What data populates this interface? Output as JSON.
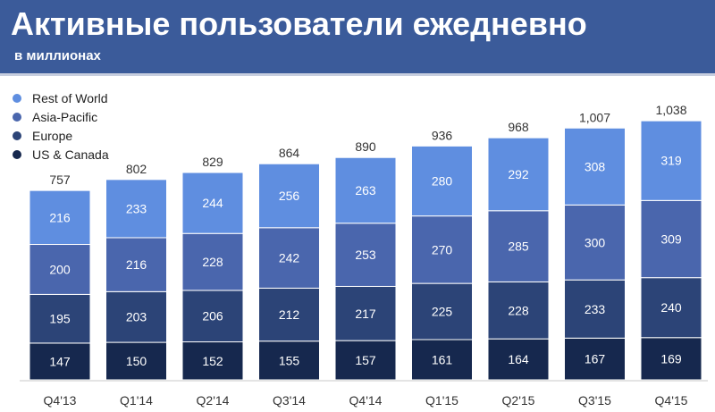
{
  "header": {
    "title": "Активные пользователи ежедневно",
    "subtitle": "в миллионах"
  },
  "colors": {
    "header_bg": "#3b5b9a",
    "rest_of_world": "#5f8ee0",
    "asia_pacific": "#4a66ad",
    "europe": "#2c4477",
    "us_canada": "#16284e"
  },
  "chart_data": {
    "type": "bar",
    "stacked": true,
    "title": "Активные пользователи ежедневно",
    "subtitle": "в миллионах",
    "xlabel": "",
    "ylabel": "",
    "legend_position": "top-left",
    "categories": [
      "Q4'13",
      "Q1'14",
      "Q2'14",
      "Q3'14",
      "Q4'14",
      "Q1'15",
      "Q2'15",
      "Q3'15",
      "Q4'15"
    ],
    "series": [
      {
        "name": "US & Canada",
        "key": "us_canada",
        "values": [
          147,
          150,
          152,
          155,
          157,
          161,
          164,
          167,
          169
        ]
      },
      {
        "name": "Europe",
        "key": "europe",
        "values": [
          195,
          203,
          206,
          212,
          217,
          225,
          228,
          233,
          240
        ]
      },
      {
        "name": "Asia-Pacific",
        "key": "asia_pacific",
        "values": [
          200,
          216,
          228,
          242,
          253,
          270,
          285,
          300,
          309
        ]
      },
      {
        "name": "Rest of World",
        "key": "rest_of_world",
        "values": [
          216,
          233,
          244,
          256,
          263,
          280,
          292,
          308,
          319
        ]
      }
    ],
    "totals": [
      "757",
      "802",
      "829",
      "864",
      "890",
      "936",
      "968",
      "1,007",
      "1,038"
    ]
  }
}
